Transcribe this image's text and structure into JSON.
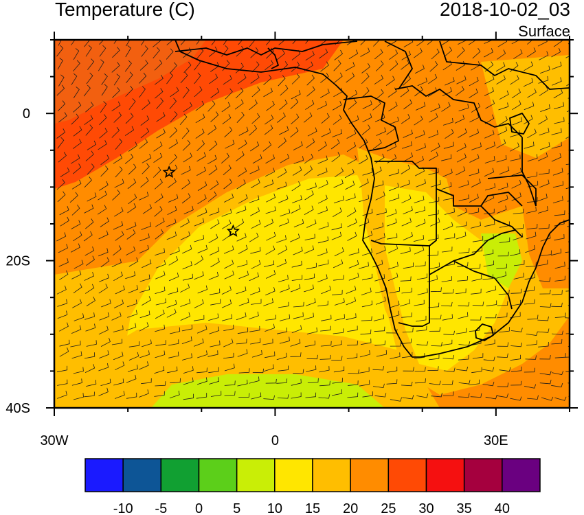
{
  "header": {
    "title": "Temperature (C)",
    "datetime": "2018-10-02_03",
    "level": "Surface"
  },
  "map": {
    "lat_range": [
      -40,
      10
    ],
    "lon_range": [
      -30,
      40
    ],
    "lat_ticks": [
      {
        "value": 0,
        "label": "0"
      },
      {
        "value": -20,
        "label": "20S"
      },
      {
        "value": -40,
        "label": "40S"
      }
    ],
    "lon_ticks": [
      {
        "value": -30,
        "label": "30W"
      },
      {
        "value": 0,
        "label": "0"
      },
      {
        "value": 30,
        "label": "30E"
      }
    ],
    "markers": [
      {
        "name": "star-marker",
        "lon": -14.4,
        "lat": -8.0
      },
      {
        "name": "star-marker",
        "lon": -5.7,
        "lat": -16.0
      }
    ]
  },
  "colorbar": {
    "colors": [
      "#1a1aff",
      "#0d5596",
      "#11a032",
      "#5ccf1a",
      "#c9ee06",
      "#ffe600",
      "#ffbe00",
      "#ff8c00",
      "#ff4a05",
      "#f51010",
      "#a5003e",
      "#6a0080"
    ],
    "labels": [
      "-10",
      "-5",
      "0",
      "5",
      "10",
      "15",
      "20",
      "25",
      "30",
      "35",
      "40"
    ]
  },
  "fill_colors": {
    "cool": "#c9ee06",
    "mild": "#ffe600",
    "warm": "#ffbe00",
    "hot": "#ff8c00",
    "hotter": "#ff4a05"
  }
}
